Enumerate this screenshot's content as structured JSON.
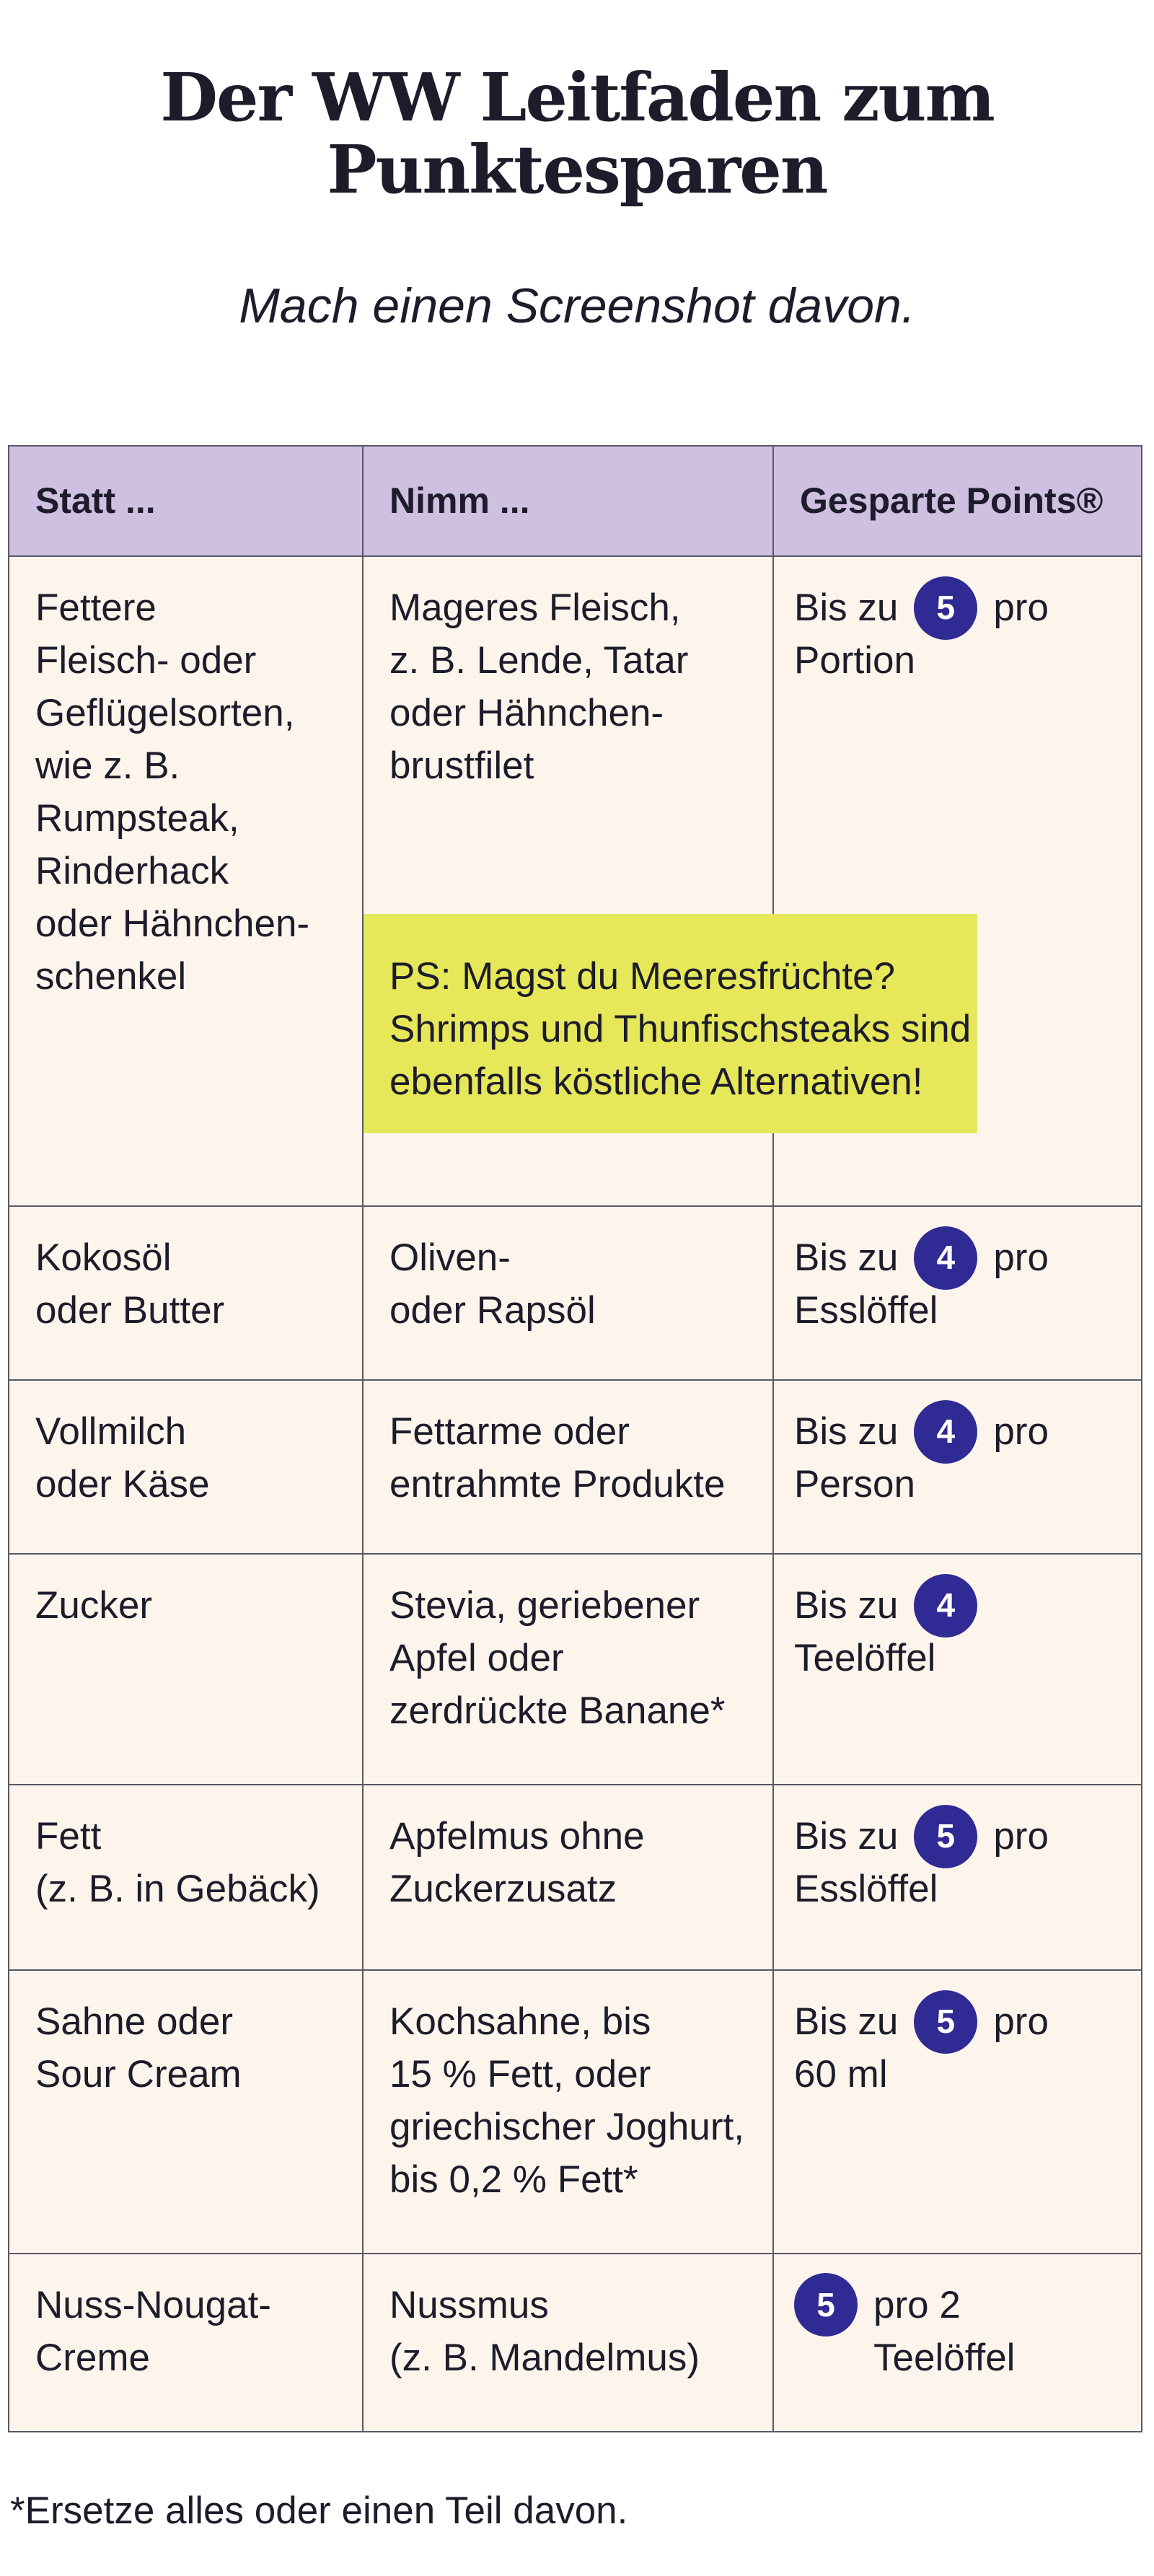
{
  "header": {
    "title": "Der WW Leitfaden zum\nPunktesparen",
    "subtitle": "Mach einen Screenshot davon."
  },
  "table": {
    "headers": [
      "Statt ...",
      "Nimm ...",
      "Gesparte Points®"
    ],
    "rows": [
      {
        "statt": "Fettere\nFleisch- oder\nGeflügelsorten,\nwie z. B.\nRumpsteak,\nRinderhack\noder Hähnchen-\nschenkel",
        "nimm": "Mageres Fleisch,\nz. B. Lende, Tatar\noder Hähnchen-\nbrustfilet",
        "before": "Bis zu",
        "points": 5,
        "after": "pro",
        "unit": "Portion"
      },
      {
        "statt": "Kokosöl\noder Butter",
        "nimm": "Oliven-\noder Rapsöl",
        "before": "Bis zu",
        "points": 4,
        "after": "pro",
        "unit": "Esslöffel"
      },
      {
        "statt": "Vollmilch\noder Käse",
        "nimm": "Fettarme oder\nentrahmte Produkte",
        "before": "Bis zu",
        "points": 4,
        "after": "pro",
        "unit": "Person"
      },
      {
        "statt": "Zucker",
        "nimm": "Stevia, geriebener\nApfel oder\nzerdrückte Banane*",
        "before": "Bis zu",
        "points": 4,
        "unit": "Teelöffel"
      },
      {
        "statt": "Fett\n(z. B. in Gebäck)",
        "nimm": "Apfelmus ohne\nZuckerzusatz",
        "before": "Bis zu",
        "points": 5,
        "after": "pro",
        "unit": "Esslöffel"
      },
      {
        "statt": "Sahne oder\nSour Cream",
        "nimm": "Kochsahne, bis\n15 % Fett, oder\ngriechischer Joghurt,\nbis 0,2 % Fett*",
        "before": "Bis zu",
        "points": 5,
        "after": "pro",
        "unit": "60 ml"
      },
      {
        "statt": "Nuss-Nougat-\nCreme",
        "nimm": "Nussmus\n(z. B. Mandelmus)",
        "points": 5,
        "after": "pro 2",
        "unit": "Teelöffel"
      }
    ]
  },
  "note": "PS: Magst du Meeresfrüchte?\nShrimps und Thunfischsteaks sind\nebenfalls köstliche Alternativen!",
  "footnote": "*Ersetze alles oder einen Teil davon."
}
